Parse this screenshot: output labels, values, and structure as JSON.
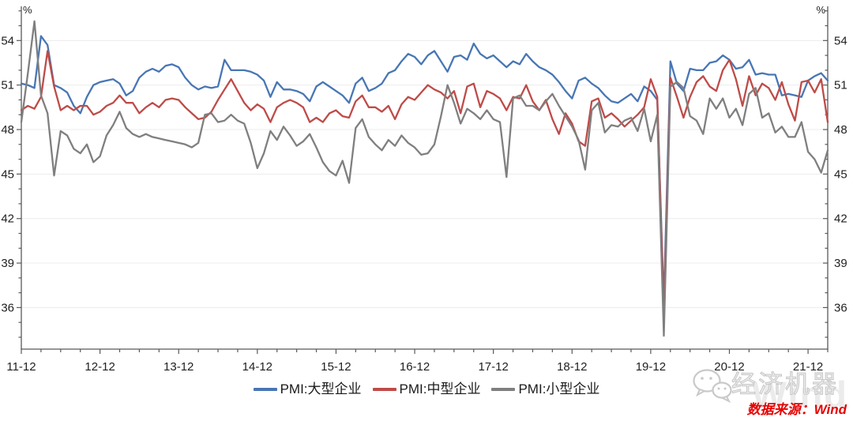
{
  "chart_data": {
    "type": "line",
    "title": "",
    "x_start": "2011-12",
    "x_end": "2022-03",
    "x_frequency": "monthly",
    "x_tick_labels": [
      "11-12",
      "12-12",
      "13-12",
      "14-12",
      "15-12",
      "16-12",
      "17-12",
      "18-12",
      "19-12",
      "20-12",
      "21-12"
    ],
    "x_minor_tick_every_months": 3,
    "ylim": [
      33.2,
      56.2
    ],
    "yticks": [
      36,
      39,
      42,
      45,
      48,
      51,
      54
    ],
    "y_minor_step": 1,
    "unit": "%",
    "grid": "horizontal",
    "legend_position": "bottom-center",
    "series": [
      {
        "name": "PMI:大型企业",
        "color": "#4876B4",
        "values": [
          51.1,
          51.0,
          50.8,
          54.3,
          53.7,
          51.0,
          50.8,
          50.5,
          49.6,
          49.1,
          50.2,
          51.0,
          51.2,
          51.3,
          51.4,
          51.1,
          50.3,
          50.6,
          51.5,
          51.9,
          52.1,
          51.9,
          52.3,
          52.4,
          52.2,
          51.5,
          51.0,
          50.7,
          50.9,
          50.8,
          50.9,
          52.7,
          52.0,
          52.0,
          52.0,
          51.9,
          51.7,
          51.3,
          50.2,
          51.2,
          50.7,
          50.7,
          50.6,
          50.4,
          49.9,
          50.9,
          51.2,
          50.9,
          50.6,
          50.3,
          49.8,
          51.1,
          51.5,
          50.6,
          50.8,
          51.1,
          51.8,
          52.0,
          52.6,
          53.1,
          52.9,
          52.4,
          53.0,
          53.3,
          52.6,
          51.9,
          52.9,
          53.0,
          52.7,
          53.8,
          53.1,
          52.8,
          53.0,
          52.6,
          52.2,
          52.6,
          52.4,
          53.1,
          52.6,
          52.2,
          52.0,
          51.7,
          51.2,
          50.6,
          50.1,
          51.3,
          51.5,
          51.1,
          50.8,
          50.3,
          49.9,
          49.8,
          50.1,
          50.4,
          49.9,
          50.9,
          50.6,
          50.0,
          36.3,
          52.6,
          51.1,
          50.6,
          52.1,
          52.0,
          52.0,
          52.5,
          52.6,
          53.0,
          52.7,
          52.1,
          52.2,
          52.7,
          51.7,
          51.8,
          51.7,
          51.7,
          50.3,
          50.4,
          50.3,
          50.2,
          51.3,
          51.6,
          51.8,
          51.3
        ]
      },
      {
        "name": "PMI:中型企业",
        "color": "#BE4B48",
        "values": [
          49.3,
          49.6,
          49.4,
          50.2,
          53.3,
          50.9,
          49.3,
          49.6,
          49.3,
          49.6,
          49.6,
          49.0,
          49.2,
          49.6,
          49.8,
          50.3,
          49.8,
          49.8,
          49.1,
          49.5,
          49.8,
          49.5,
          50.0,
          50.1,
          50.0,
          49.5,
          49.1,
          48.7,
          48.8,
          49.2,
          50.0,
          50.7,
          51.4,
          50.6,
          49.8,
          49.3,
          49.7,
          49.4,
          48.5,
          49.5,
          49.8,
          50.0,
          49.8,
          49.5,
          48.5,
          48.8,
          48.5,
          49.1,
          49.3,
          48.9,
          48.8,
          49.9,
          50.3,
          49.5,
          49.5,
          49.2,
          49.6,
          48.7,
          49.7,
          50.2,
          50.0,
          50.5,
          51.0,
          50.7,
          50.5,
          50.1,
          50.6,
          49.1,
          50.9,
          51.1,
          49.5,
          50.6,
          50.4,
          50.1,
          49.3,
          50.2,
          50.1,
          51.0,
          49.9,
          49.3,
          50.0,
          48.7,
          47.7,
          49.1,
          48.4,
          47.2,
          46.9,
          49.9,
          50.1,
          48.8,
          49.1,
          48.7,
          48.2,
          48.6,
          49.0,
          49.5,
          51.4,
          50.2,
          35.5,
          51.5,
          50.2,
          48.8,
          50.2,
          51.2,
          51.6,
          50.9,
          50.6,
          52.0,
          52.7,
          51.4,
          49.6,
          51.6,
          50.3,
          51.1,
          50.8,
          50.0,
          51.2,
          49.7,
          48.6,
          51.2,
          51.3,
          50.5,
          51.4,
          48.5
        ]
      },
      {
        "name": "PMI:小型企业",
        "color": "#7F7F7F",
        "values": [
          48.5,
          51.8,
          55.3,
          50.3,
          49.1,
          44.9,
          47.9,
          47.6,
          46.7,
          46.4,
          47.0,
          45.8,
          46.2,
          47.6,
          48.3,
          49.2,
          48.1,
          47.7,
          47.5,
          47.7,
          47.5,
          47.4,
          47.3,
          47.2,
          47.1,
          47.0,
          46.8,
          47.1,
          49.0,
          49.1,
          48.5,
          48.6,
          49.0,
          48.6,
          48.4,
          47.1,
          45.4,
          46.4,
          47.9,
          47.3,
          48.2,
          47.6,
          46.9,
          47.2,
          47.7,
          46.8,
          45.8,
          45.2,
          44.9,
          45.9,
          44.4,
          48.1,
          48.7,
          47.5,
          47.0,
          46.6,
          47.3,
          46.9,
          47.6,
          47.1,
          46.8,
          46.3,
          46.4,
          47.0,
          48.9,
          51.0,
          49.8,
          48.4,
          49.4,
          49.1,
          48.7,
          49.3,
          48.7,
          48.5,
          44.8,
          50.1,
          50.3,
          49.6,
          49.6,
          49.3,
          49.9,
          50.4,
          49.6,
          48.9,
          48.2,
          47.3,
          45.3,
          49.3,
          49.8,
          47.8,
          48.3,
          48.2,
          48.6,
          48.8,
          47.9,
          49.4,
          47.2,
          49.0,
          34.1,
          50.9,
          51.2,
          50.8,
          48.9,
          48.6,
          47.7,
          50.1,
          49.4,
          50.1,
          48.8,
          49.4,
          48.3,
          50.4,
          50.8,
          48.8,
          49.1,
          47.8,
          48.2,
          47.5,
          47.5,
          48.5,
          46.5,
          46.0,
          45.1,
          46.6
        ]
      }
    ]
  },
  "axis": {
    "unit_left": "%",
    "unit_right": "%"
  },
  "watermark": {
    "brand": "经济机器",
    "background": "Wind"
  },
  "source": {
    "text": "数据来源：Wind",
    "color": "#E60000"
  },
  "style": {
    "axis_color": "#58595b",
    "grid_color": "#ececec",
    "tick_label_color": "#1f1f1f"
  }
}
